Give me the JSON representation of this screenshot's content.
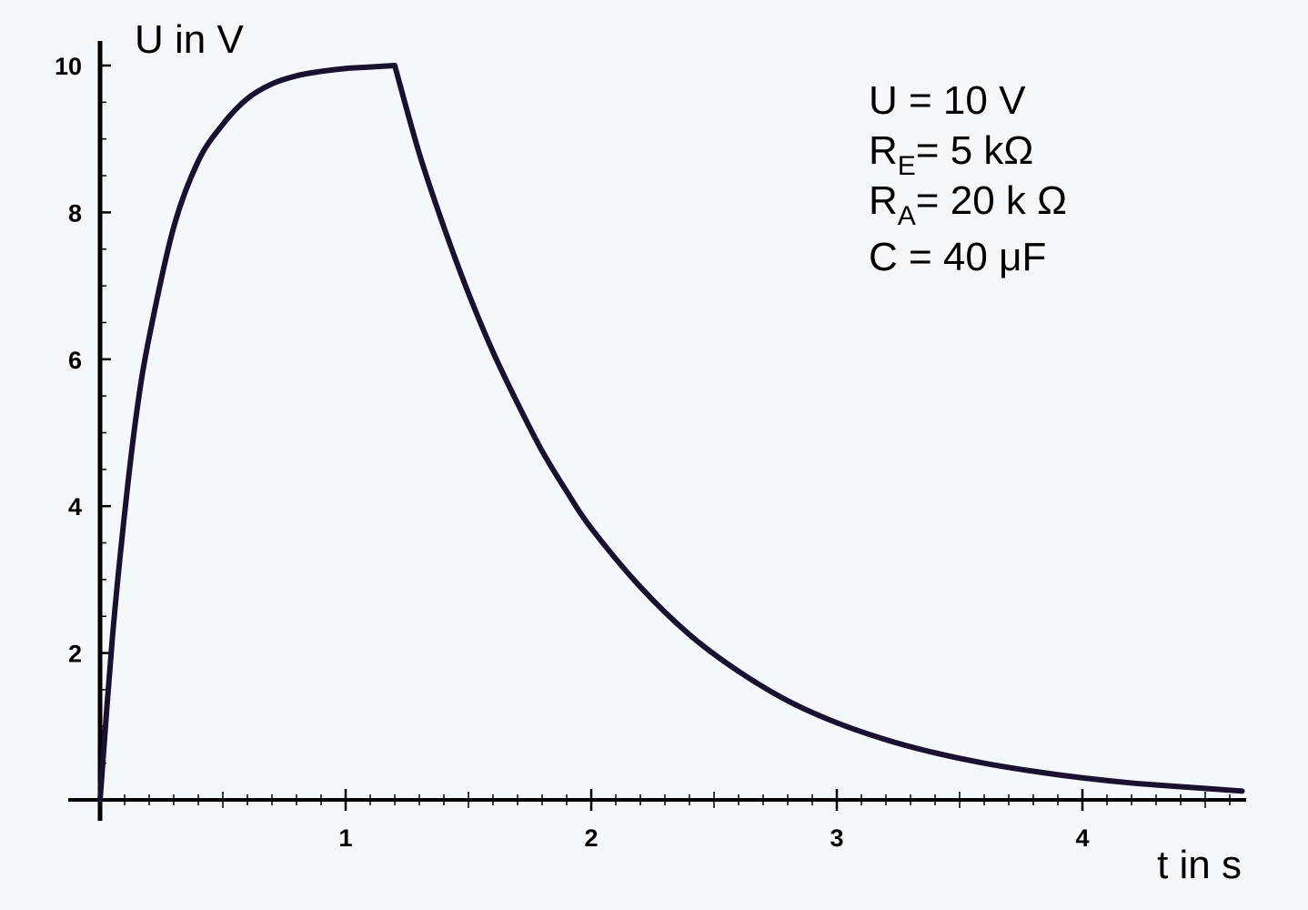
{
  "chart_data": {
    "type": "line",
    "ylabel": "U in V",
    "xlabel": "t in s",
    "xlim": [
      0,
      4.65
    ],
    "ylim": [
      0,
      10
    ],
    "x_ticks": [
      {
        "value": 1,
        "label": "1"
      },
      {
        "value": 2,
        "label": "2"
      },
      {
        "value": 3,
        "label": "3"
      },
      {
        "value": 4,
        "label": "4"
      }
    ],
    "y_ticks": [
      {
        "value": 2,
        "label": "2"
      },
      {
        "value": 4,
        "label": "4"
      },
      {
        "value": 6,
        "label": "6"
      },
      {
        "value": 8,
        "label": "8"
      },
      {
        "value": 10,
        "label": "10"
      }
    ],
    "x_minor_step": 0.1,
    "y_minor_step": 0.5,
    "grid": false,
    "series": [
      {
        "color": "#1a1030",
        "x": [
          0,
          0.05,
          0.1,
          0.15,
          0.2,
          0.3,
          0.4,
          0.5,
          0.6,
          0.7,
          0.8,
          0.9,
          1.0,
          1.1,
          1.2,
          1.3,
          1.4,
          1.5,
          1.6,
          1.7,
          1.8,
          1.9,
          2.0,
          2.2,
          2.4,
          2.6,
          2.8,
          3.0,
          3.2,
          3.4,
          3.6,
          3.8,
          4.0,
          4.2,
          4.4,
          4.65
        ],
        "values": [
          0,
          2.2,
          3.9,
          5.3,
          6.3,
          7.8,
          8.7,
          9.2,
          9.55,
          9.75,
          9.86,
          9.92,
          9.96,
          9.98,
          10.0,
          8.8,
          7.8,
          6.9,
          6.1,
          5.4,
          4.75,
          4.2,
          3.7,
          2.9,
          2.25,
          1.75,
          1.35,
          1.05,
          0.82,
          0.64,
          0.5,
          0.39,
          0.3,
          0.23,
          0.18,
          0.12
        ]
      }
    ]
  },
  "annotations": {
    "line1": "U = 10 V",
    "line2_main": "R",
    "line2_sub": "E",
    "line2_rest": "= 5 kΩ",
    "line3_main": "R",
    "line3_sub": "A",
    "line3_rest": "= 20 k Ω",
    "line4": "C = 40 μF"
  }
}
